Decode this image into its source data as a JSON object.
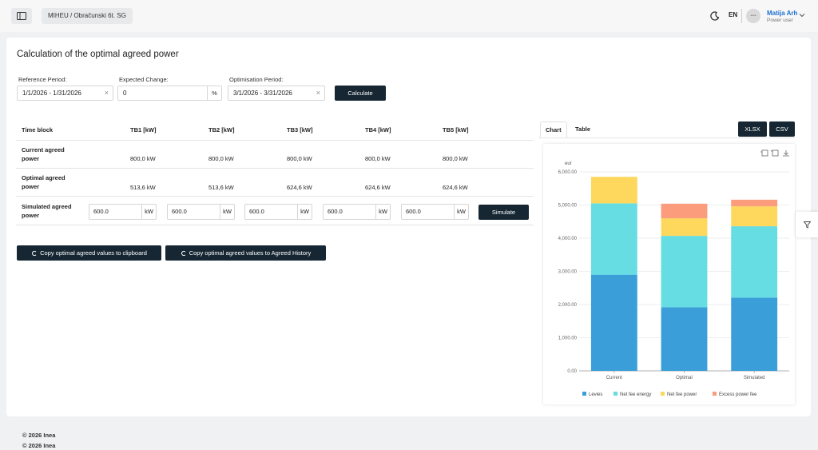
{
  "header": {
    "breadcrumb": "MIHEU / Obračunski 6t. SG",
    "language": "EN",
    "user_name": "Matija Arh",
    "user_role": "Power user",
    "avatar_text": "••••"
  },
  "page": {
    "title": "Calculation of the optimal agreed power"
  },
  "form": {
    "reference_period_label": "Reference Period:",
    "reference_period_value": "1/1/2026 - 1/31/2026",
    "expected_change_label": "Expected Change:",
    "expected_change_value": "0",
    "expected_change_unit": "%",
    "optimisation_period_label": "Optimisation Period:",
    "optimisation_period_value": "3/1/2026 - 3/31/2026",
    "clear_symbol": "×",
    "calculate_label": "Calculate"
  },
  "table": {
    "headers": [
      "Time block",
      "TB1 [kW]",
      "TB2 [kW]",
      "TB3 [kW]",
      "TB4 [kW]",
      "TB5 [kW]"
    ],
    "rows": [
      {
        "label": "Current agreed power",
        "values": [
          "800,0 kW",
          "800,0 kW",
          "800,0 kW",
          "800,0 kW",
          "800,0 kW"
        ]
      },
      {
        "label": "Optimal agreed power",
        "values": [
          "513,6 kW",
          "513,6 kW",
          "624,6 kW",
          "624,6 kW",
          "624,6 kW"
        ]
      }
    ],
    "simulated": {
      "label": "Simulated agreed power",
      "values": [
        "600.0",
        "600.0",
        "600.0",
        "600.0",
        "600.0"
      ],
      "unit": "kW"
    },
    "simulate_label": "Simulate"
  },
  "actions": {
    "copy_clipboard_label": "Copy optimal agreed values to clipboard",
    "copy_history_label": "Copy optimal agreed values to Agreed History"
  },
  "view": {
    "tabs": [
      {
        "label": "Chart",
        "active": true
      },
      {
        "label": "Table",
        "active": false
      }
    ],
    "xlsx_label": "XLSX",
    "csv_label": "CSV"
  },
  "chart_data": {
    "type": "bar",
    "stacked": true,
    "ylabel": "eur",
    "ylim": [
      0,
      6000
    ],
    "yticks": [
      "0.00",
      "1,000.00",
      "2,000.00",
      "3,000.00",
      "4,000.00",
      "5,000.00",
      "6,000.00"
    ],
    "categories": [
      "Current",
      "Optimal",
      "Simulated"
    ],
    "series": [
      {
        "name": "Levies",
        "color": "#3a9fd8",
        "values": [
          2900,
          1920,
          2210
        ]
      },
      {
        "name": "Net fee energy",
        "color": "#66dde3",
        "values": [
          2150,
          2150,
          2150
        ]
      },
      {
        "name": "Net fee power",
        "color": "#fdd85d",
        "values": [
          800,
          530,
          600
        ]
      },
      {
        "name": "Excess power fee",
        "color": "#fb9c7c",
        "values": [
          0,
          440,
          200
        ]
      }
    ],
    "legend_position": "bottom",
    "grid": true
  },
  "footer": {
    "lines": [
      "© 2026 Inea",
      "© 2026 Inea"
    ]
  }
}
